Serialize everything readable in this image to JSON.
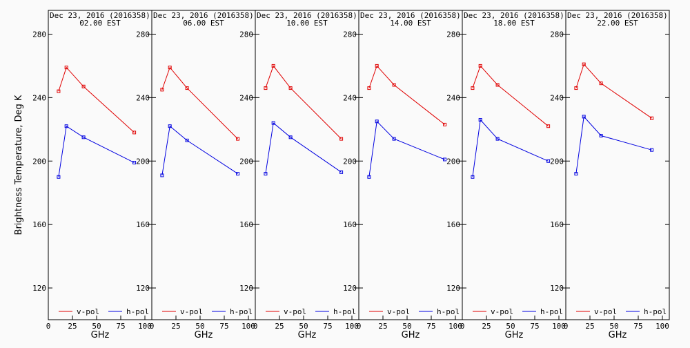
{
  "ylabel": "Brightness Temperature, Deg K",
  "colors": {
    "v_pol": "#e00000",
    "h_pol": "#0000e0",
    "axis": "#000000",
    "background": "#fafafa"
  },
  "chart_data": {
    "type": "line",
    "ylim": [
      100,
      295
    ],
    "yticks": [
      120,
      160,
      200,
      240,
      280
    ],
    "xlim": [
      0,
      100
    ],
    "xticks": [
      0,
      25,
      50,
      75,
      100
    ],
    "x": [
      10.65,
      18.7,
      36.5,
      89.0
    ],
    "legend_position": "bottom",
    "panels": [
      {
        "title": "Dec 23, 2016 (2016358)",
        "time": "02.00 EST",
        "xlabel": "GHz",
        "series": [
          {
            "name": "v-pol",
            "values": [
              244,
              259,
              247,
              218
            ]
          },
          {
            "name": "h-pol",
            "values": [
              190,
              222,
              215,
              199
            ]
          }
        ]
      },
      {
        "title": "Dec 23, 2016 (2016358)",
        "time": "06.00 EST",
        "xlabel": "GHz",
        "series": [
          {
            "name": "v-pol",
            "values": [
              245,
              259,
              246,
              214
            ]
          },
          {
            "name": "h-pol",
            "values": [
              191,
              222,
              213,
              192
            ]
          }
        ]
      },
      {
        "title": "Dec 23, 2016 (2016358)",
        "time": "10.00 EST",
        "xlabel": "GHz",
        "series": [
          {
            "name": "v-pol",
            "values": [
              246,
              260,
              246,
              214
            ]
          },
          {
            "name": "h-pol",
            "values": [
              192,
              224,
              215,
              193
            ]
          }
        ]
      },
      {
        "title": "Dec 23, 2016 (2016358)",
        "time": "14.00 EST",
        "xlabel": "GHz",
        "series": [
          {
            "name": "v-pol",
            "values": [
              246,
              260,
              248,
              223
            ]
          },
          {
            "name": "h-pol",
            "values": [
              190,
              225,
              214,
              201
            ]
          }
        ]
      },
      {
        "title": "Dec 23, 2016 (2016358)",
        "time": "18.00 EST",
        "xlabel": "GHz",
        "series": [
          {
            "name": "v-pol",
            "values": [
              246,
              260,
              248,
              222
            ]
          },
          {
            "name": "h-pol",
            "values": [
              190,
              226,
              214,
              200
            ]
          }
        ]
      },
      {
        "title": "Dec 23, 2016 (2016358)",
        "time": "22.00 EST",
        "xlabel": "GHz",
        "series": [
          {
            "name": "v-pol",
            "values": [
              246,
              261,
              249,
              227
            ]
          },
          {
            "name": "h-pol",
            "values": [
              192,
              228,
              216,
              207
            ]
          }
        ]
      }
    ]
  }
}
